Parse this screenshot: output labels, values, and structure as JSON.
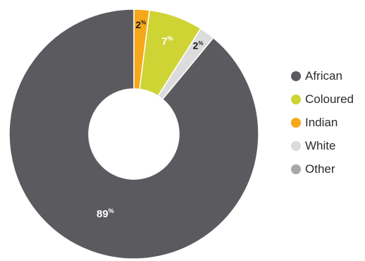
{
  "chart_data": {
    "type": "pie",
    "title": "",
    "categories": [
      "Indian",
      "Coloured",
      "White",
      "African"
    ],
    "values": [
      2,
      7,
      2,
      89
    ],
    "value_suffix": "%",
    "colors": {
      "African": "#5b5a5f",
      "Coloured": "#cfd435",
      "Indian": "#f6a71a",
      "White": "#dcdcdc",
      "Other": "#a8a8ab"
    },
    "label_colors": {
      "Indian": "#1a1a1a",
      "Coloured": "#ffffff",
      "White": "#1a1a1a",
      "African": "#ffffff"
    },
    "legend": {
      "position": "right",
      "items": [
        "African",
        "Coloured",
        "Indian",
        "White",
        "Other"
      ]
    },
    "donut": true
  }
}
